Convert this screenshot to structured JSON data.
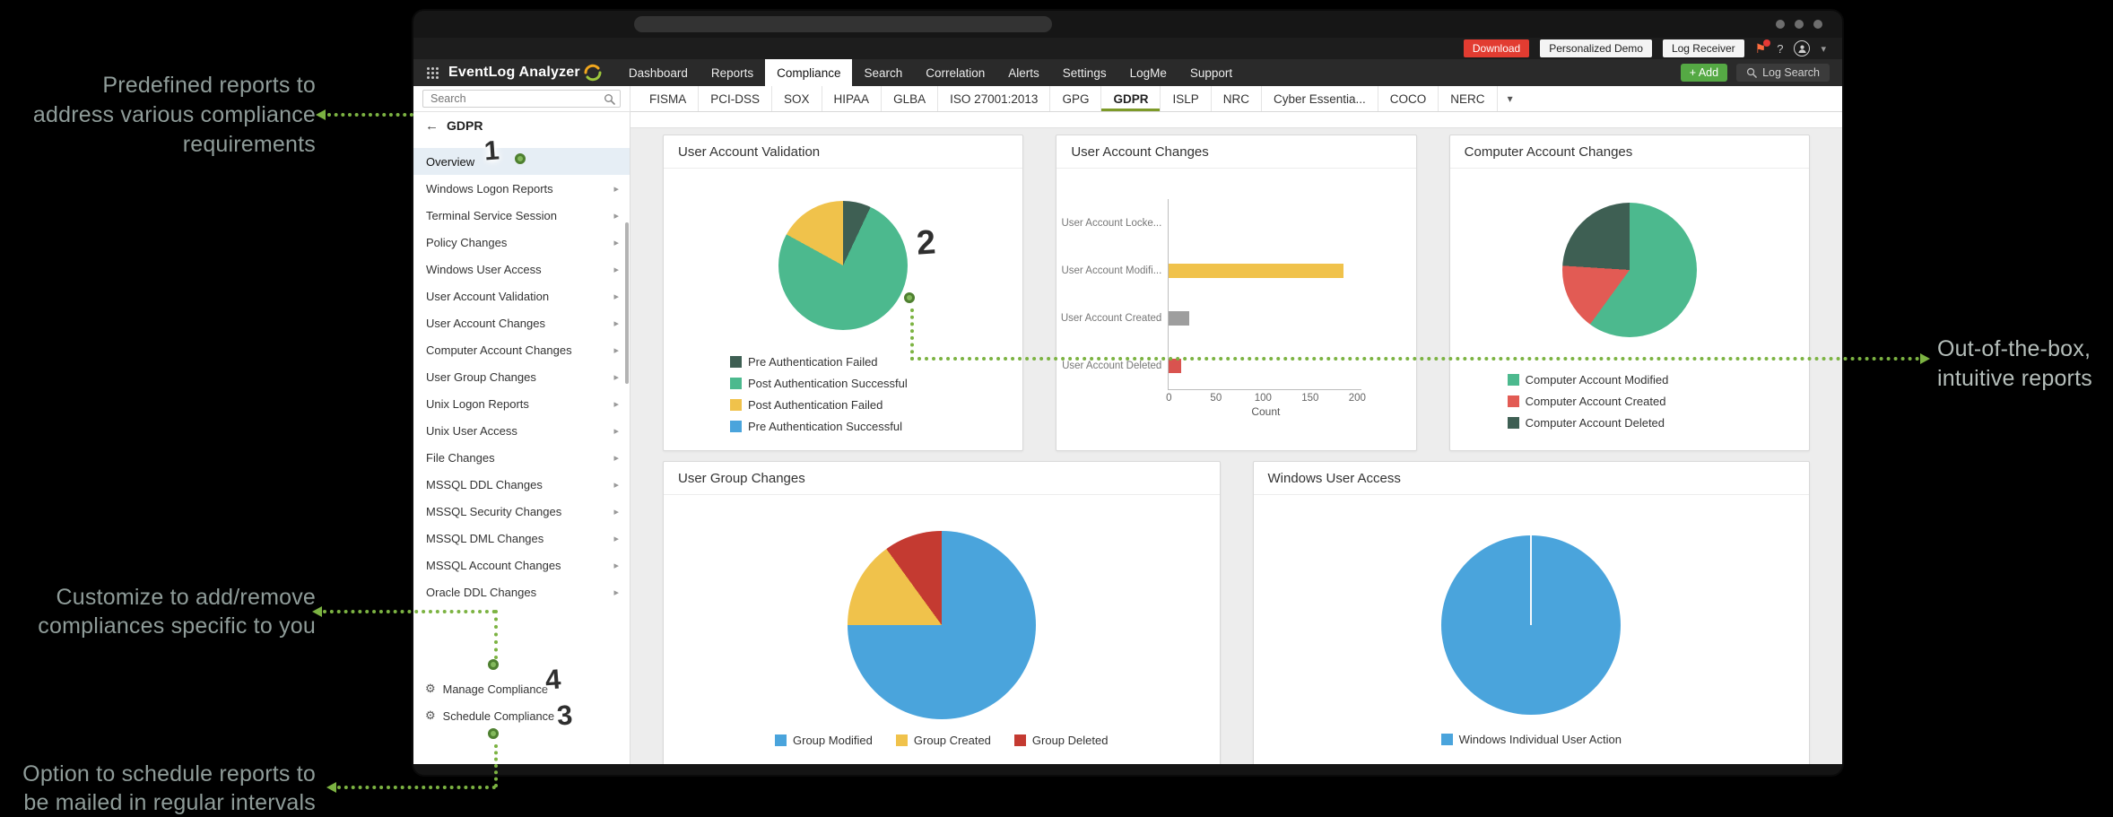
{
  "colors": {
    "annotation_green": "#7cb342",
    "add_button_green": "#55a944",
    "download_red": "#e23c31",
    "active_tab_underline": "#7d9a29"
  },
  "icons": {
    "caret_down": "▾",
    "submenu_caret": "▸",
    "gear": "⚙",
    "back_arrow": "←",
    "flag": "⚑",
    "help": "?"
  },
  "annotations": {
    "left_top": "Predefined reports to\naddress various compliance\nrequirements",
    "left_middle": "Customize to add/remove\ncompliances specific to you",
    "left_bottom": "Option to schedule reports to\nbe mailed in regular intervals",
    "right": "Out-of-the-box,\nintuitive reports",
    "markers": {
      "m1": "1",
      "m2": "2",
      "m3": "3",
      "m4": "4"
    }
  },
  "window": {
    "brand": "EventLog Analyzer",
    "utility": {
      "download": "Download",
      "personalized_demo": "Personalized Demo",
      "log_receiver": "Log Receiver",
      "help": "?"
    },
    "nav": {
      "items": [
        "Dashboard",
        "Reports",
        "Compliance",
        "Search",
        "Correlation",
        "Alerts",
        "Settings",
        "LogMe",
        "Support"
      ],
      "active": "Compliance"
    },
    "actions": {
      "add": "+ Add",
      "log_search": "Log Search"
    },
    "compliance_tabs": {
      "items": [
        "FISMA",
        "PCI-DSS",
        "SOX",
        "HIPAA",
        "GLBA",
        "ISO 27001:2013",
        "GPG",
        "GDPR",
        "ISLP",
        "NRC",
        "Cyber Essentia...",
        "COCO",
        "NERC"
      ],
      "active": "GDPR"
    },
    "sidebar": {
      "search_placeholder": "Search",
      "header": "GDPR",
      "items": [
        {
          "label": "Overview",
          "active": true,
          "submenu": false
        },
        {
          "label": "Windows Logon Reports",
          "submenu": true
        },
        {
          "label": "Terminal Service Session",
          "submenu": true
        },
        {
          "label": "Policy Changes",
          "submenu": true
        },
        {
          "label": "Windows User Access",
          "submenu": true
        },
        {
          "label": "User Account Validation",
          "submenu": true
        },
        {
          "label": "User Account Changes",
          "submenu": true
        },
        {
          "label": "Computer Account Changes",
          "submenu": true
        },
        {
          "label": "User Group Changes",
          "submenu": true
        },
        {
          "label": "Unix Logon Reports",
          "submenu": true
        },
        {
          "label": "Unix User Access",
          "submenu": true
        },
        {
          "label": "File Changes",
          "submenu": true
        },
        {
          "label": "MSSQL DDL Changes",
          "submenu": true
        },
        {
          "label": "MSSQL Security Changes",
          "submenu": true
        },
        {
          "label": "MSSQL DML Changes",
          "submenu": true
        },
        {
          "label": "MSSQL Account Changes",
          "submenu": true
        },
        {
          "label": "Oracle DDL Changes",
          "submenu": true
        }
      ],
      "footer": [
        {
          "label": "Manage Compliance"
        },
        {
          "label": "Schedule Compliance"
        }
      ]
    }
  },
  "chart_data": [
    {
      "id": "user-account-validation",
      "type": "pie",
      "title": "User Account Validation",
      "series": [
        {
          "name": "Pre Authentication Failed",
          "value": 7,
          "color": "#3e5f53"
        },
        {
          "name": "Post Authentication Successful",
          "value": 76,
          "color": "#4cb98e"
        },
        {
          "name": "Post Authentication Failed",
          "value": 17,
          "color": "#f0c24b"
        },
        {
          "name": "Pre Authentication Successful",
          "value": 0,
          "color": "#4aa4dc"
        }
      ],
      "legend_layout": "col",
      "size": 144,
      "top_gap": 36,
      "legend_gap": 28,
      "legend_indent": 74
    },
    {
      "id": "user-account-changes",
      "type": "bar-horizontal",
      "title": "User Account Changes",
      "categories": [
        "User Account Locke...",
        "User Account Modifi...",
        "User Account Created",
        "User Account Deleted"
      ],
      "values": [
        0,
        185,
        22,
        13
      ],
      "colors": [
        "#9e9e9e",
        "#f0c24b",
        "#9e9e9e",
        "#d9534f"
      ],
      "xlabel": "Count",
      "xticks": [
        0,
        50,
        100,
        150,
        200
      ],
      "xmax": 200
    },
    {
      "id": "computer-account-changes",
      "type": "pie",
      "title": "Computer Account Changes",
      "series": [
        {
          "name": "Computer Account Modified",
          "value": 60,
          "color": "#4cb98e"
        },
        {
          "name": "Computer Account Created",
          "value": 16,
          "color": "#e25b54"
        },
        {
          "name": "Computer Account Deleted",
          "value": 24,
          "color": "#3e5f53"
        }
      ],
      "legend_layout": "col",
      "size": 150,
      "top_gap": 38,
      "legend_gap": 40,
      "legend_indent": 64
    },
    {
      "id": "user-group-changes",
      "type": "pie",
      "title": "User Group Changes",
      "series": [
        {
          "name": "Group Modified",
          "value": 75,
          "color": "#4aa4dc"
        },
        {
          "name": "Group Created",
          "value": 15,
          "color": "#f0c24b"
        },
        {
          "name": "Group Deleted",
          "value": 10,
          "color": "#c43a31"
        }
      ],
      "legend_layout": "row",
      "size": 210,
      "top_gap": 40,
      "legend_gap": 16
    },
    {
      "id": "windows-user-access",
      "type": "pie",
      "title": "Windows User Access",
      "series": [
        {
          "name": "Windows Individual User Action",
          "value": 100,
          "color": "#4aa4dc"
        }
      ],
      "legend_layout": "row",
      "size": 200,
      "top_gap": 45,
      "legend_gap": 20,
      "divider_at_top": true
    }
  ]
}
